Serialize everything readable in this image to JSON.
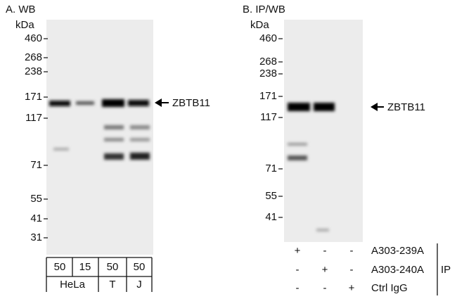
{
  "panels": [
    {
      "title": "A. WB",
      "unit": "kDa",
      "markers": [
        460,
        268,
        238,
        171,
        117,
        71,
        55,
        41,
        31
      ],
      "target": "ZBTB11",
      "lane_loads": [
        "50",
        "15",
        "50",
        "50"
      ],
      "groups": [
        "HeLa",
        "T",
        "J"
      ]
    },
    {
      "title": "B. IP/WB",
      "unit": "kDa",
      "markers": [
        460,
        268,
        238,
        171,
        117,
        71,
        55,
        41
      ],
      "target": "ZBTB11",
      "rows": [
        {
          "symbols": [
            "+",
            "-",
            "-"
          ],
          "label": "A303-239A"
        },
        {
          "symbols": [
            "-",
            "+",
            "-"
          ],
          "label": "A303-240A"
        },
        {
          "symbols": [
            "-",
            "-",
            "+"
          ],
          "label": "Ctrl IgG"
        }
      ],
      "bracket_label": "IP"
    }
  ]
}
